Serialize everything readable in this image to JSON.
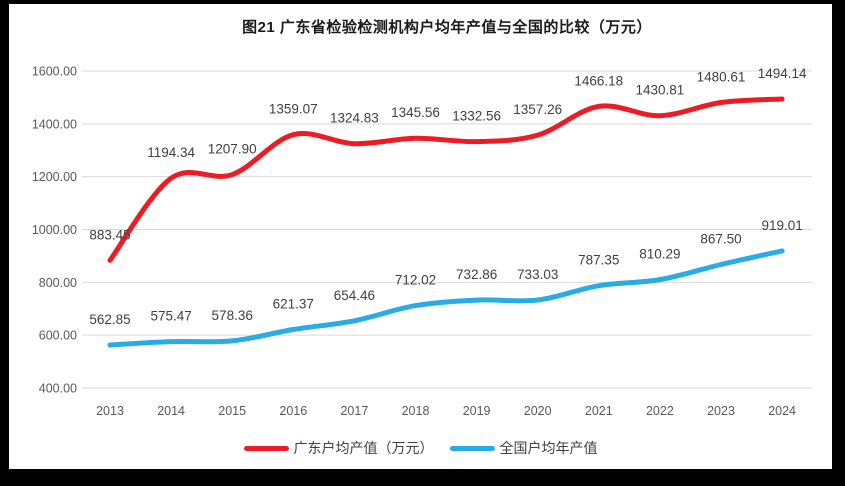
{
  "window": {
    "frame_color": "#000000",
    "background": "#ffffff"
  },
  "chart_data": {
    "type": "line",
    "title": "图21  广东省检验检测机构户均年产值与全国的比较（万元）",
    "x": [
      "2013",
      "2014",
      "2015",
      "2016",
      "2017",
      "2018",
      "2019",
      "2020",
      "2021",
      "2022",
      "2023",
      "2024"
    ],
    "series": [
      {
        "name": "广东户均产值（万元）",
        "color": "#ed1c24",
        "values": [
          883.45,
          1194.34,
          1207.9,
          1359.07,
          1324.83,
          1345.56,
          1332.56,
          1357.26,
          1466.18,
          1430.81,
          1480.61,
          1494.14
        ]
      },
      {
        "name": "全国户均年产值",
        "color": "#29ace3",
        "values": [
          562.85,
          575.47,
          578.36,
          621.37,
          654.46,
          712.02,
          732.86,
          733.03,
          787.35,
          810.29,
          867.5,
          919.01
        ]
      }
    ],
    "ylim": [
      400,
      1600
    ],
    "ytick_step": 200,
    "ytick_labels": [
      "400.00",
      "600.00",
      "800.00",
      "1000.00",
      "1200.00",
      "1400.00",
      "1600.00"
    ],
    "value_label_decimals": 2,
    "grid": true,
    "grid_color": "#d9d9d9",
    "tick_label_color": "#595959",
    "data_label_color": "#404040",
    "legend_position": "bottom",
    "line_width": 5
  }
}
